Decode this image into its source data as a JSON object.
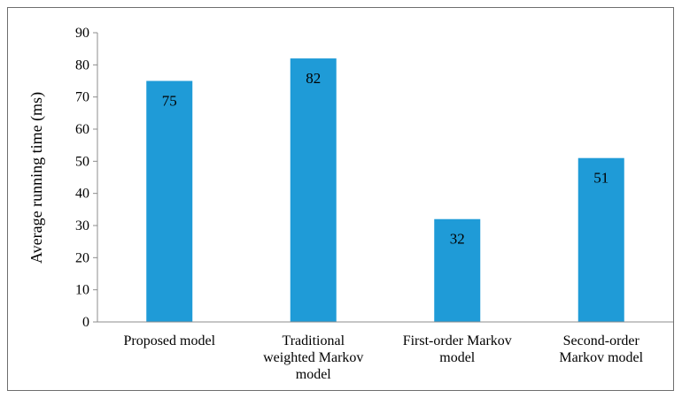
{
  "chart_data": {
    "type": "bar",
    "title": "",
    "xlabel": "",
    "ylabel": "Average running time (ms)",
    "ylim": [
      0,
      90
    ],
    "yticks": [
      0,
      10,
      20,
      30,
      40,
      50,
      60,
      70,
      80,
      90
    ],
    "grid": false,
    "legend": "none",
    "categories": [
      [
        "Proposed model"
      ],
      [
        "Traditional",
        "weighted Markov",
        "model"
      ],
      [
        "First-order Markov",
        "model"
      ],
      [
        "Second-order",
        "Markov model"
      ]
    ],
    "values": [
      75,
      82,
      32,
      51
    ],
    "data_labels": [
      "75",
      "82",
      "32",
      "51"
    ],
    "bar_color": "#1f9bd7",
    "axis_color": "#8c8c8c"
  }
}
